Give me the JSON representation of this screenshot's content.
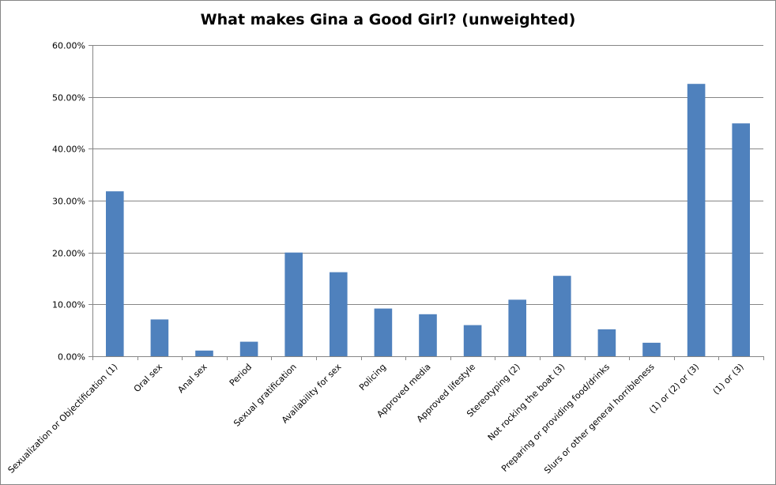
{
  "chart_data": {
    "type": "bar",
    "title": "What makes Gina a Good Girl? (unweighted)",
    "xlabel": "",
    "ylabel": "",
    "ylim": [
      0,
      0.6
    ],
    "ytick_values": [
      0,
      0.1,
      0.2,
      0.3,
      0.4,
      0.5,
      0.6
    ],
    "ytick_labels": [
      "0.00%",
      "10.00%",
      "20.00%",
      "30.00%",
      "40.00%",
      "50.00%",
      "60.00%"
    ],
    "grid": true,
    "legend": "none",
    "bar_color": "#4F81BD",
    "categories": [
      "Sexualization or Objectification (1)",
      "Oral sex",
      "Anal sex",
      "Period",
      "Sexual gratification",
      "Availability for sex",
      "Policing",
      "Approved media",
      "Approved lifestyle",
      "Stereotyping (2)",
      "Not rocking the boat (3)",
      "Preparing or providing food/drinks",
      "Slurs or other general horribleness",
      "(1) or (2) or (3)",
      "(1) or (3)"
    ],
    "values": [
      0.318,
      0.071,
      0.011,
      0.028,
      0.2,
      0.162,
      0.092,
      0.081,
      0.06,
      0.109,
      0.155,
      0.052,
      0.026,
      0.525,
      0.449
    ]
  }
}
